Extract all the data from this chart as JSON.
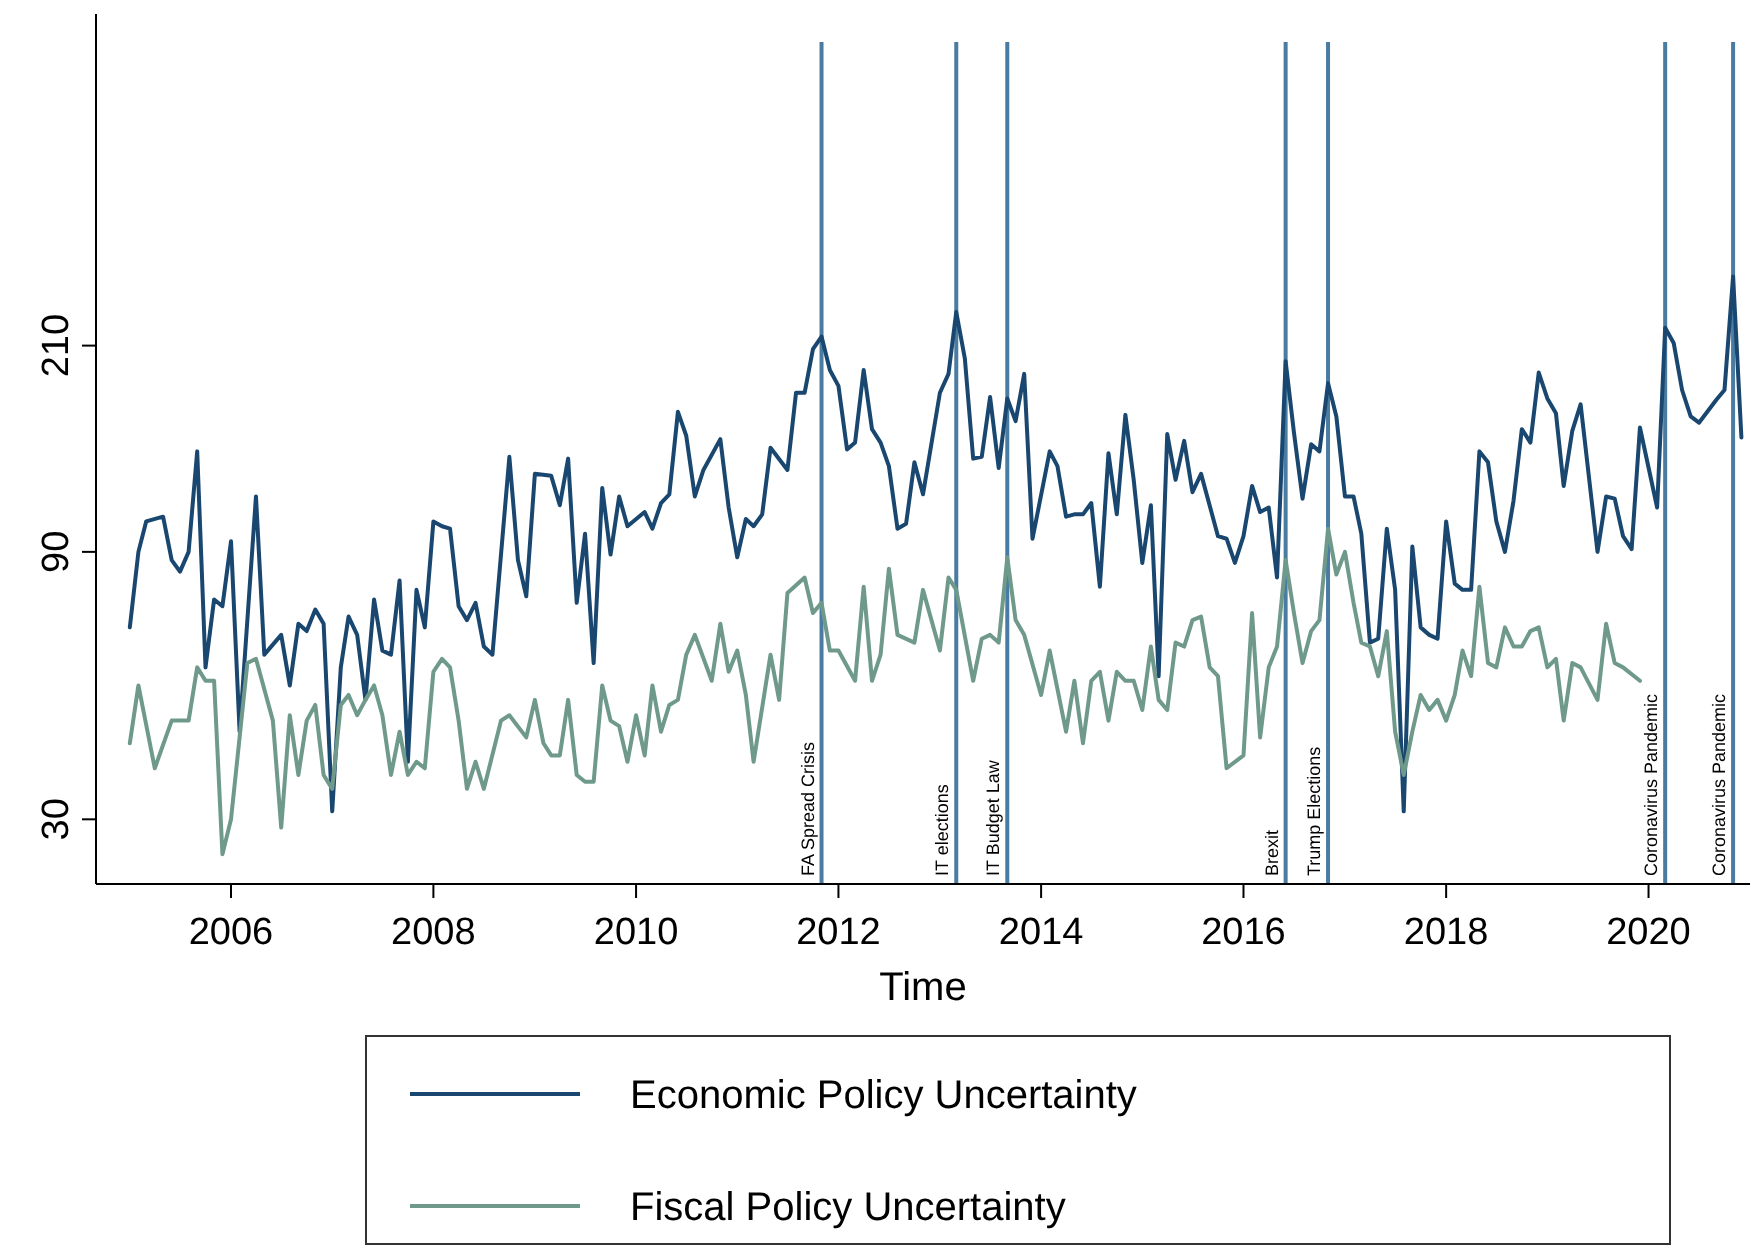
{
  "chart_data": {
    "type": "line",
    "xlabel": "Time",
    "log": true,
    "legend": "bottom",
    "xlim": [
      "2004-09",
      "2021-01"
    ],
    "xticks": [
      "2006",
      "2008",
      "2010",
      "2012",
      "2014",
      "2016",
      "2018",
      "2020"
    ],
    "ylim": [
      23,
      820
    ],
    "yticks": [
      30,
      90,
      210
    ],
    "series": [
      {
        "name": "Economic Policy Uncertainty",
        "color": "#1a476f",
        "x": [
          "2005-01",
          "2005-02",
          "2005-03",
          "2005-05",
          "2005-06",
          "2005-07",
          "2005-08",
          "2005-09",
          "2005-10",
          "2005-11",
          "2005-12",
          "2006-01",
          "2006-02",
          "2006-04",
          "2006-05",
          "2006-07",
          "2006-08",
          "2006-09",
          "2006-10",
          "2006-11",
          "2006-12",
          "2007-01",
          "2007-02",
          "2007-03",
          "2007-04",
          "2007-05",
          "2007-06",
          "2007-07",
          "2007-08",
          "2007-09",
          "2007-10",
          "2007-11",
          "2007-12",
          "2008-01",
          "2008-02",
          "2008-03",
          "2008-04",
          "2008-05",
          "2008-06",
          "2008-07",
          "2008-08",
          "2008-10",
          "2008-11",
          "2008-12",
          "2009-01",
          "2009-03",
          "2009-04",
          "2009-05",
          "2009-06",
          "2009-07",
          "2009-08",
          "2009-09",
          "2009-10",
          "2009-11",
          "2009-12",
          "2010-02",
          "2010-03",
          "2010-04",
          "2010-05",
          "2010-06",
          "2010-07",
          "2010-08",
          "2010-09",
          "2010-11",
          "2010-12",
          "2011-01",
          "2011-02",
          "2011-03",
          "2011-04",
          "2011-05",
          "2011-07",
          "2011-08",
          "2011-09",
          "2011-10",
          "2011-11",
          "2011-12",
          "2012-01",
          "2012-02",
          "2012-03",
          "2012-04",
          "2012-05",
          "2012-06",
          "2012-07",
          "2012-08",
          "2012-09",
          "2012-10",
          "2012-11",
          "2013-01",
          "2013-02",
          "2013-03",
          "2013-04",
          "2013-05",
          "2013-06",
          "2013-07",
          "2013-08",
          "2013-09",
          "2013-10",
          "2013-11",
          "2013-12",
          "2014-02",
          "2014-03",
          "2014-04",
          "2014-05",
          "2014-06",
          "2014-07",
          "2014-08",
          "2014-09",
          "2014-10",
          "2014-11",
          "2014-12",
          "2015-01",
          "2015-02",
          "2015-03",
          "2015-04",
          "2015-05",
          "2015-06",
          "2015-07",
          "2015-08",
          "2015-10",
          "2015-11",
          "2015-12",
          "2016-01",
          "2016-02",
          "2016-03",
          "2016-04",
          "2016-05",
          "2016-06",
          "2016-07",
          "2016-08",
          "2016-09",
          "2016-10",
          "2016-11",
          "2016-12",
          "2017-01",
          "2017-02",
          "2017-03",
          "2017-04",
          "2017-05",
          "2017-06",
          "2017-07",
          "2017-08",
          "2017-09",
          "2017-10",
          "2017-11",
          "2017-12",
          "2018-01",
          "2018-02",
          "2018-03",
          "2018-04",
          "2018-05",
          "2018-06",
          "2018-07",
          "2018-08",
          "2018-09",
          "2018-10",
          "2018-11",
          "2018-12",
          "2019-01",
          "2019-02",
          "2019-03",
          "2019-04",
          "2019-05",
          "2019-07",
          "2019-08",
          "2019-09",
          "2019-10",
          "2019-11",
          "2019-12",
          "2020-02",
          "2020-03",
          "2020-04",
          "2020-05",
          "2020-06",
          "2020-07",
          "2020-09",
          "2020-10",
          "2020-11",
          "2020-12"
        ],
        "values": [
          66,
          90,
          102,
          104,
          87,
          83,
          90,
          136,
          56,
          74,
          72,
          94,
          43,
          113,
          59,
          64,
          52,
          67,
          65,
          71,
          67,
          31,
          56,
          69,
          64,
          49,
          74,
          60,
          59,
          80,
          38,
          77,
          66,
          102,
          100,
          99,
          72,
          68,
          73,
          61,
          59,
          133,
          87,
          75,
          124,
          123,
          109,
          132,
          73,
          97,
          57,
          117,
          89,
          113,
          100,
          106,
          99,
          110,
          114,
          160,
          145,
          113,
          126,
          143,
          108,
          88,
          103,
          100,
          105,
          138,
          126,
          173,
          173,
          207,
          218,
          190,
          178,
          137,
          141,
          190,
          149,
          141,
          128,
          99,
          101,
          130,
          114,
          173,
          187,
          241,
          199,
          132,
          133,
          170,
          127,
          169,
          154,
          187,
          95,
          136,
          128,
          104,
          105,
          105,
          110,
          78,
          135,
          105,
          158,
          121,
          86,
          109,
          54,
          146,
          121,
          142,
          115,
          124,
          96,
          95,
          86,
          96,
          118,
          106,
          108,
          81,
          197,
          147,
          112,
          140,
          136,
          180,
          157,
          113,
          113,
          97,
          62,
          63,
          99,
          77,
          31,
          92,
          66,
          64,
          63,
          102,
          79,
          77,
          77,
          136,
          130,
          102,
          90,
          111,
          149,
          141,
          188,
          169,
          159,
          118,
          148,
          165,
          90,
          113,
          112,
          96,
          91,
          150,
          108,
          226,
          212,
          175,
          157,
          153,
          168,
          175,
          279,
          144
        ]
      },
      {
        "name": "Fiscal Policy Uncertainty",
        "color": "#6f9a8b",
        "x": [
          "2005-01",
          "2005-02",
          "2005-04",
          "2005-06",
          "2005-07",
          "2005-08",
          "2005-09",
          "2005-10",
          "2005-11",
          "2005-12",
          "2006-01",
          "2006-03",
          "2006-04",
          "2006-06",
          "2006-07",
          "2006-08",
          "2006-09",
          "2006-10",
          "2006-11",
          "2006-12",
          "2007-01",
          "2007-02",
          "2007-03",
          "2007-04",
          "2007-05",
          "2007-06",
          "2007-07",
          "2007-08",
          "2007-09",
          "2007-10",
          "2007-11",
          "2007-12",
          "2008-01",
          "2008-02",
          "2008-03",
          "2008-04",
          "2008-05",
          "2008-06",
          "2008-07",
          "2008-09",
          "2008-10",
          "2008-12",
          "2009-01",
          "2009-02",
          "2009-03",
          "2009-04",
          "2009-05",
          "2009-06",
          "2009-07",
          "2009-08",
          "2009-09",
          "2009-10",
          "2009-11",
          "2009-12",
          "2010-01",
          "2010-02",
          "2010-03",
          "2010-04",
          "2010-05",
          "2010-06",
          "2010-07",
          "2010-08",
          "2010-10",
          "2010-11",
          "2010-12",
          "2011-01",
          "2011-02",
          "2011-03",
          "2011-05",
          "2011-06",
          "2011-07",
          "2011-09",
          "2011-10",
          "2011-11",
          "2011-12",
          "2012-01",
          "2012-03",
          "2012-04",
          "2012-05",
          "2012-06",
          "2012-07",
          "2012-08",
          "2012-10",
          "2012-11",
          "2013-01",
          "2013-02",
          "2013-03",
          "2013-05",
          "2013-06",
          "2013-07",
          "2013-08",
          "2013-09",
          "2013-10",
          "2013-11",
          "2014-01",
          "2014-02",
          "2014-04",
          "2014-05",
          "2014-06",
          "2014-07",
          "2014-08",
          "2014-09",
          "2014-10",
          "2014-11",
          "2014-12",
          "2015-01",
          "2015-02",
          "2015-03",
          "2015-04",
          "2015-05",
          "2015-06",
          "2015-07",
          "2015-08",
          "2015-09",
          "2015-10",
          "2015-11",
          "2016-01",
          "2016-02",
          "2016-03",
          "2016-04",
          "2016-05",
          "2016-06",
          "2016-07",
          "2016-08",
          "2016-09",
          "2016-10",
          "2016-11",
          "2016-12",
          "2017-01",
          "2017-02",
          "2017-03",
          "2017-04",
          "2017-05",
          "2017-06",
          "2017-07",
          "2017-08",
          "2017-09",
          "2017-10",
          "2017-11",
          "2017-12",
          "2018-01",
          "2018-02",
          "2018-03",
          "2018-04",
          "2018-05",
          "2018-06",
          "2018-07",
          "2018-08",
          "2018-09",
          "2018-10",
          "2018-11",
          "2018-12",
          "2019-01",
          "2019-02",
          "2019-03",
          "2019-04",
          "2019-05",
          "2019-07",
          "2019-08",
          "2019-09",
          "2019-10",
          "2019-12"
        ],
        "values": [
          41,
          52,
          37,
          45,
          45,
          45,
          56,
          53,
          53,
          26,
          30,
          57,
          58,
          45,
          29,
          46,
          36,
          45,
          48,
          36,
          34,
          48,
          50,
          46,
          49,
          52,
          46,
          36,
          43,
          36,
          38,
          37,
          55,
          58,
          56,
          45,
          34,
          38,
          34,
          45,
          46,
          42,
          49,
          41,
          39,
          39,
          49,
          36,
          35,
          35,
          52,
          45,
          44,
          38,
          46,
          39,
          52,
          43,
          48,
          49,
          59,
          64,
          53,
          67,
          55,
          60,
          50,
          38,
          59,
          49,
          76,
          81,
          70,
          73,
          60,
          60,
          53,
          78,
          53,
          59,
          84,
          64,
          62,
          77,
          60,
          81,
          77,
          53,
          63,
          64,
          62,
          88,
          68,
          64,
          50,
          60,
          43,
          53,
          41,
          53,
          55,
          45,
          55,
          53,
          53,
          47,
          61,
          49,
          47,
          62,
          61,
          68,
          69,
          56,
          54,
          37,
          39,
          70,
          42,
          56,
          61,
          87,
          70,
          57,
          65,
          68,
          99,
          82,
          90,
          73,
          62,
          61,
          54,
          65,
          43,
          36,
          43,
          50,
          47,
          49,
          45,
          50,
          60,
          54,
          78,
          57,
          56,
          66,
          61,
          61,
          65,
          66,
          56,
          58,
          45,
          57,
          56,
          49,
          67,
          57,
          56,
          53
        ]
      }
    ],
    "ref_lines": [
      {
        "axis": "x",
        "value": "2011-11",
        "label": "FA Spread Crisis",
        "color": "#4a7ba0"
      },
      {
        "axis": "x",
        "value": "2013-03",
        "label": "IT elections",
        "color": "#4a7ba0"
      },
      {
        "axis": "x",
        "value": "2013-09",
        "label": "IT Budget Law",
        "color": "#4a7ba0"
      },
      {
        "axis": "x",
        "value": "2016-06",
        "label": "Brexit",
        "color": "#4a7ba0"
      },
      {
        "axis": "x",
        "value": "2016-11",
        "label": "Trump Elections",
        "color": "#4a7ba0"
      },
      {
        "axis": "x",
        "value": "2020-03",
        "label": "Coronavirus Pandemic",
        "color": "#4a7ba0"
      },
      {
        "axis": "x",
        "value": "2020-11",
        "label": "Coronavirus Pandemic",
        "color": "#4a7ba0"
      }
    ]
  }
}
